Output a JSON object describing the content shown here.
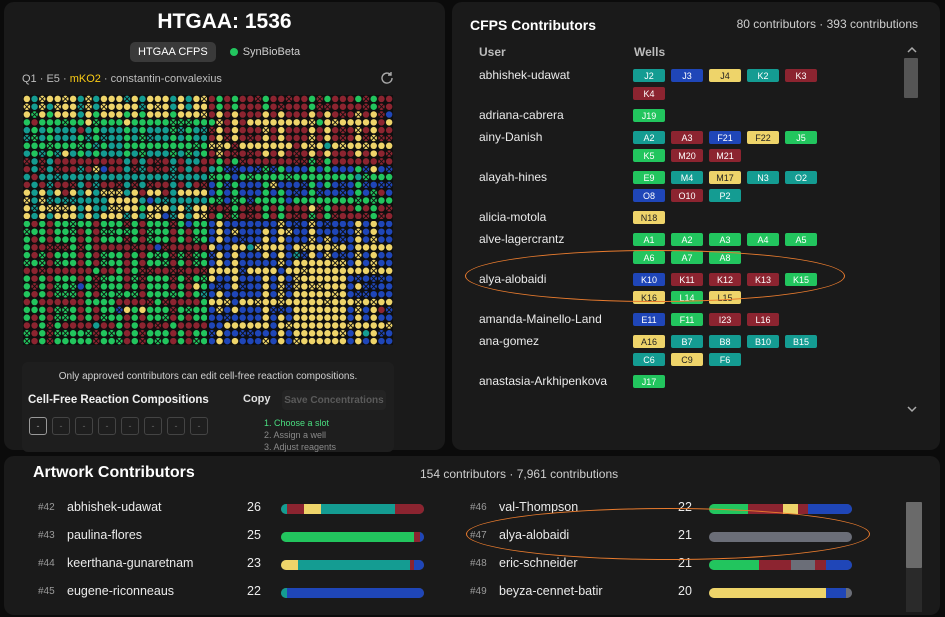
{
  "header": {
    "title": "HTGAA: 1536",
    "tabs": [
      "HTGAA CFPS",
      "SynBioBeta"
    ]
  },
  "slot_info": {
    "position": "Q1 · E5 · ",
    "protein": "mKO2",
    "contributor": " · constantin-convalexius"
  },
  "colors": {
    "yellow": "#eed46a",
    "red": "#8c2430",
    "teal": "#149c92",
    "green": "#22c55e",
    "blue": "#1f46b8"
  },
  "plate": {
    "rows": 32,
    "cols": 48
  },
  "info_text": "Only approved contributors can edit cell-free reaction compositions.",
  "compositions": {
    "title": "Cell-Free Reaction Compositions",
    "copy_label": "Copy",
    "save_label": "Save Concentrations",
    "slots": [
      "-",
      "-",
      "-",
      "-",
      "-",
      "-",
      "-",
      "-"
    ],
    "steps": [
      "1. Choose a slot",
      "2. Assign a well",
      "3. Adjust reagents"
    ]
  },
  "cfps": {
    "title": "CFPS Contributors",
    "stats": "80 contributors · 393 contributions",
    "col_user": "User",
    "col_wells": "Wells",
    "rows": [
      {
        "user": "abhishek-udawat",
        "wells": [
          [
            "J2",
            "teal"
          ],
          [
            "J3",
            "blue"
          ],
          [
            "J4",
            "yellow"
          ],
          [
            "K2",
            "teal"
          ],
          [
            "K3",
            "red"
          ],
          [
            "K4",
            "red"
          ]
        ]
      },
      {
        "user": "adriana-cabrera",
        "wells": [
          [
            "J19",
            "green"
          ]
        ]
      },
      {
        "user": "ainy-Danish",
        "wells": [
          [
            "A2",
            "teal"
          ],
          [
            "A3",
            "red"
          ],
          [
            "F21",
            "blue"
          ],
          [
            "F22",
            "yellow"
          ],
          [
            "J5",
            "green"
          ],
          [
            "K5",
            "green"
          ],
          [
            "M20",
            "red"
          ],
          [
            "M21",
            "red"
          ]
        ]
      },
      {
        "user": "alayah-hines",
        "wells": [
          [
            "E9",
            "green"
          ],
          [
            "M4",
            "teal"
          ],
          [
            "M17",
            "yellow"
          ],
          [
            "N3",
            "teal"
          ],
          [
            "O2",
            "teal"
          ],
          [
            "O8",
            "blue"
          ],
          [
            "O10",
            "red"
          ],
          [
            "P2",
            "teal"
          ]
        ]
      },
      {
        "user": "alicia-motola",
        "wells": [
          [
            "N18",
            "yellow"
          ]
        ]
      },
      {
        "user": "alve-lagercrantz",
        "wells": [
          [
            "A1",
            "green"
          ],
          [
            "A2",
            "green"
          ],
          [
            "A3",
            "green"
          ],
          [
            "A4",
            "green"
          ],
          [
            "A5",
            "green"
          ],
          [
            "A6",
            "green"
          ],
          [
            "A7",
            "green"
          ],
          [
            "A8",
            "green"
          ]
        ]
      },
      {
        "user": "alya-alobaidi",
        "wells": [
          [
            "K10",
            "blue"
          ],
          [
            "K11",
            "red"
          ],
          [
            "K12",
            "red"
          ],
          [
            "K13",
            "red"
          ],
          [
            "K15",
            "green"
          ],
          [
            "K16",
            "yellow"
          ],
          [
            "L14",
            "green"
          ],
          [
            "L15",
            "yellow"
          ]
        ]
      },
      {
        "user": "amanda-Mainello-Land",
        "wells": [
          [
            "E11",
            "blue"
          ],
          [
            "F11",
            "green"
          ],
          [
            "I23",
            "red"
          ],
          [
            "L16",
            "red"
          ]
        ]
      },
      {
        "user": "ana-gomez",
        "wells": [
          [
            "A16",
            "yellow"
          ],
          [
            "B7",
            "teal"
          ],
          [
            "B8",
            "teal"
          ],
          [
            "B10",
            "teal"
          ],
          [
            "B15",
            "teal"
          ],
          [
            "C6",
            "teal"
          ],
          [
            "C9",
            "yellow"
          ],
          [
            "F6",
            "teal"
          ]
        ]
      },
      {
        "user": "anastasia-Arkhipenkova",
        "wells": [
          [
            "J17",
            "green"
          ]
        ]
      }
    ]
  },
  "artwork": {
    "title": "Artwork Contributors",
    "stats": "154 contributors · 7,961 contributions",
    "rows": [
      {
        "rank": "#42",
        "name": "abhishek-udawat",
        "count": "26",
        "segments": [
          [
            "teal",
            0.04
          ],
          [
            "red",
            0.12
          ],
          [
            "yellow",
            0.12
          ],
          [
            "teal",
            0.52
          ],
          [
            "red",
            0.2
          ]
        ]
      },
      {
        "rank": "#43",
        "name": "paulina-flores",
        "count": "25",
        "segments": [
          [
            "green",
            0.93
          ],
          [
            "red",
            0.04
          ],
          [
            "blue",
            0.03
          ]
        ]
      },
      {
        "rank": "#44",
        "name": "keerthana-gunaretnam",
        "count": "23",
        "segments": [
          [
            "yellow",
            0.12
          ],
          [
            "teal",
            0.78
          ],
          [
            "red",
            0.03
          ],
          [
            "blue",
            0.07
          ]
        ]
      },
      {
        "rank": "#45",
        "name": "eugene-riconneaus",
        "count": "22",
        "segments": [
          [
            "teal",
            0.04
          ],
          [
            "blue",
            0.96
          ]
        ]
      },
      {
        "rank": "#46",
        "name": "val-Thompson",
        "count": "22",
        "segments": [
          [
            "green",
            0.27
          ],
          [
            "red",
            0.25
          ],
          [
            "yellow",
            0.1
          ],
          [
            "red",
            0.07
          ],
          [
            "blue",
            0.31
          ]
        ]
      },
      {
        "rank": "#47",
        "name": "alya-alobaidi",
        "count": "21",
        "segments": [
          [
            "gray",
            1.0
          ]
        ]
      },
      {
        "rank": "#48",
        "name": "eric-schneider",
        "count": "21",
        "segments": [
          [
            "green",
            0.35
          ],
          [
            "red",
            0.22
          ],
          [
            "gray",
            0.17
          ],
          [
            "red",
            0.08
          ],
          [
            "blue",
            0.18
          ]
        ]
      },
      {
        "rank": "#49",
        "name": "beyza-cennet-batir",
        "count": "20",
        "segments": [
          [
            "yellow",
            0.82
          ],
          [
            "blue",
            0.14
          ],
          [
            "gray",
            0.04
          ]
        ]
      }
    ]
  }
}
